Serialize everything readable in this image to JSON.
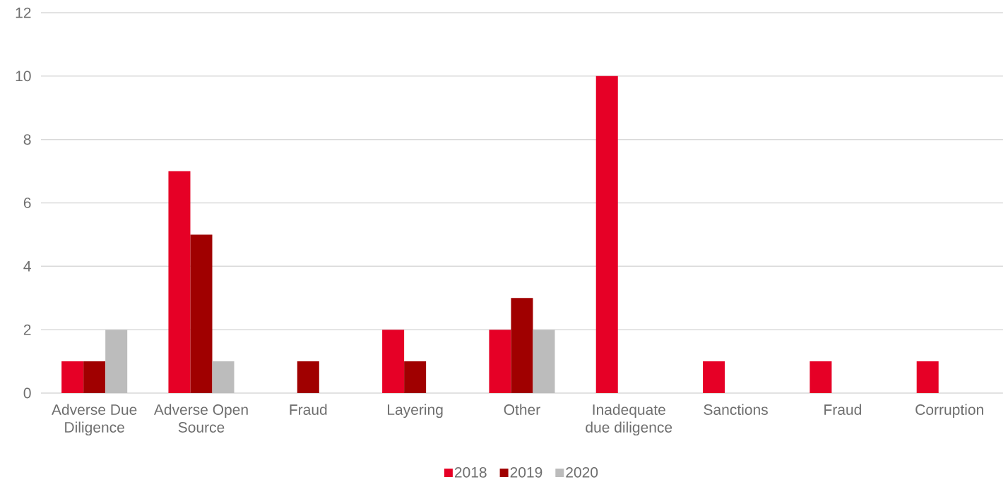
{
  "chart_data": {
    "type": "bar",
    "categories": [
      "Adverse Due Diligence",
      "Adverse Open Source",
      "Fraud",
      "Layering",
      "Other",
      "Inadequate due diligence",
      "Sanctions",
      "Fraud",
      "Corruption"
    ],
    "series": [
      {
        "name": "2018",
        "color": "#e60026",
        "values": [
          1,
          7,
          0,
          2,
          2,
          10,
          1,
          1,
          1
        ]
      },
      {
        "name": "2019",
        "color": "#a00000",
        "values": [
          1,
          5,
          1,
          1,
          3,
          0,
          0,
          0,
          0
        ]
      },
      {
        "name": "2020",
        "color": "#bcbcbc",
        "values": [
          2,
          1,
          0,
          0,
          2,
          0,
          0,
          0,
          0
        ]
      }
    ],
    "ylim": [
      0,
      12
    ],
    "yticks": [
      0,
      2,
      4,
      6,
      8,
      10,
      12
    ],
    "grid": "y",
    "legend": "bottom"
  }
}
